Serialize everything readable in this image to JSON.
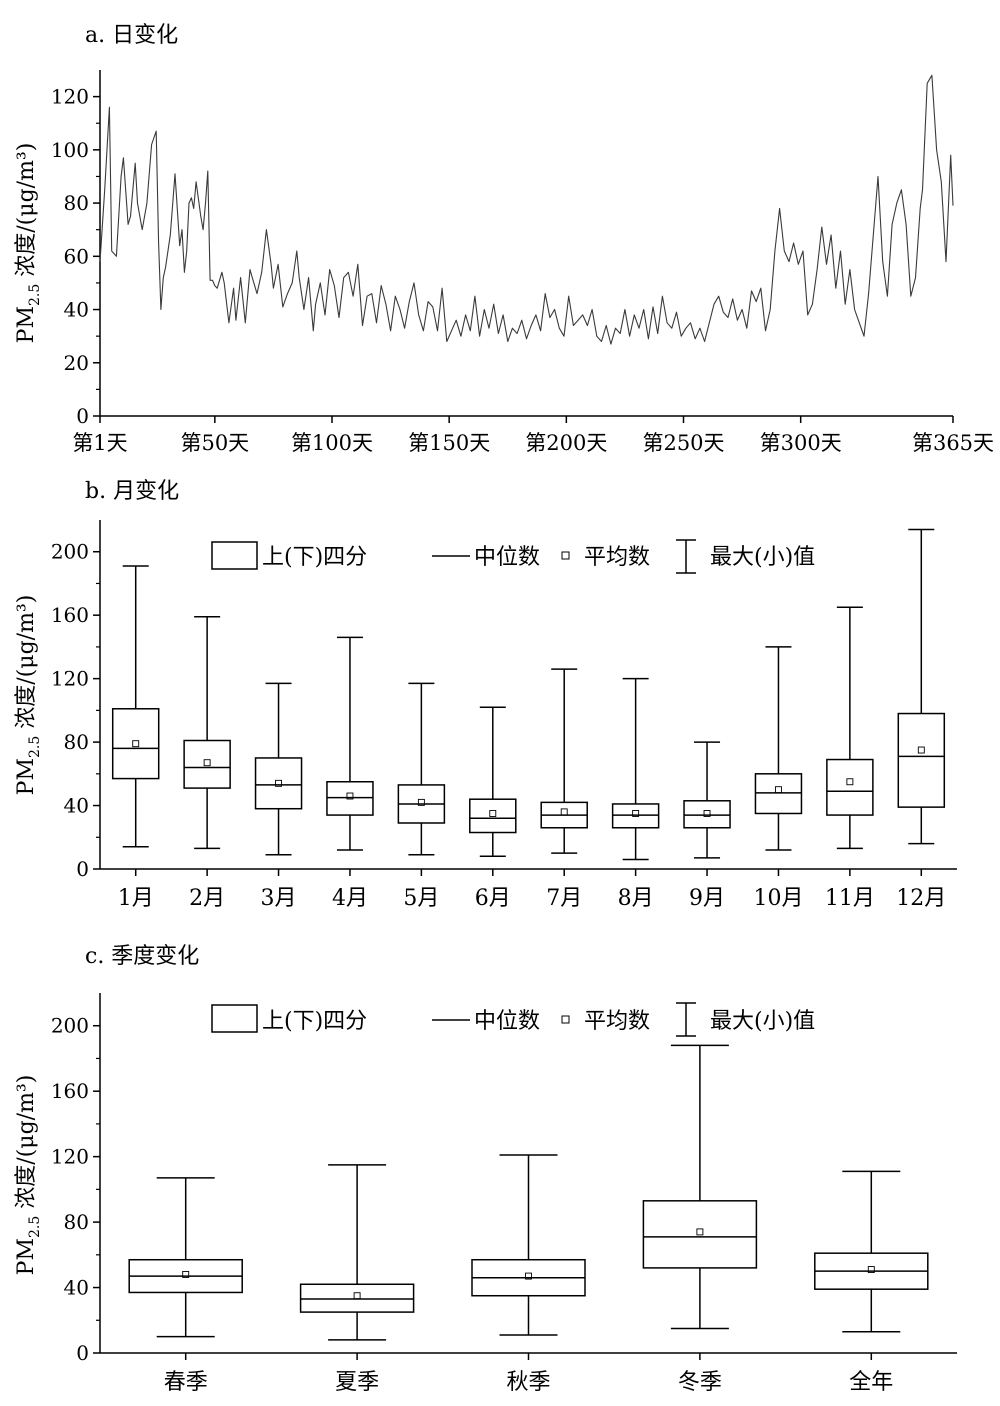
{
  "chart_data": [
    {
      "panel": "a",
      "title": "a. 日变化",
      "type": "line",
      "ylabel_main": "PM",
      "ylabel_sub": "2.5",
      "ylabel_rest": " 浓度/(μg/m³)",
      "ylim": [
        0,
        130
      ],
      "yticks": [
        0,
        20,
        40,
        60,
        80,
        100,
        120
      ],
      "xlim": [
        1,
        365
      ],
      "xticks": [
        {
          "x": 1,
          "label": "第1天"
        },
        {
          "x": 50,
          "label": "第50天"
        },
        {
          "x": 100,
          "label": "第100天"
        },
        {
          "x": 150,
          "label": "第150天"
        },
        {
          "x": 200,
          "label": "第200天"
        },
        {
          "x": 250,
          "label": "第250天"
        },
        {
          "x": 300,
          "label": "第300天"
        },
        {
          "x": 365,
          "label": "第365天"
        }
      ],
      "series": [
        {
          "x": [
            1,
            3,
            5,
            6,
            8,
            10,
            11,
            13,
            14,
            16,
            17,
            19,
            21,
            23,
            25,
            26,
            27,
            28,
            29,
            31,
            33,
            35,
            36,
            37,
            38,
            39,
            40,
            41,
            42,
            44,
            45,
            46,
            47,
            48,
            49,
            50,
            51,
            53,
            54,
            56,
            58,
            59,
            61,
            63,
            65,
            66,
            68,
            70,
            72,
            74,
            75,
            77,
            79,
            81,
            83,
            85,
            86,
            88,
            90,
            92,
            93,
            95,
            97,
            99,
            101,
            103,
            105,
            107,
            109,
            111,
            113,
            115,
            117,
            119,
            121,
            123,
            125,
            127,
            129,
            131,
            133,
            135,
            137,
            139,
            141,
            143,
            145,
            147,
            149,
            151,
            153,
            155,
            157,
            159,
            161,
            163,
            165,
            167,
            169,
            171,
            173,
            175,
            177,
            179,
            181,
            183,
            185,
            187,
            189,
            191,
            193,
            195,
            197,
            199,
            201,
            203,
            205,
            207,
            209,
            211,
            213,
            215,
            217,
            219,
            221,
            223,
            225,
            227,
            229,
            231,
            233,
            235,
            237,
            239,
            241,
            243,
            245,
            247,
            249,
            251,
            253,
            255,
            257,
            259,
            261,
            263,
            265,
            267,
            269,
            271,
            273,
            275,
            277,
            279,
            281,
            283,
            285,
            287,
            289,
            291,
            293,
            295,
            297,
            299,
            301,
            303,
            305,
            307,
            309,
            311,
            313,
            315,
            317,
            319,
            321,
            323,
            325,
            327,
            329,
            331,
            333,
            335,
            337,
            339,
            341,
            343,
            345,
            347,
            349,
            351,
            352,
            354,
            356,
            358,
            360,
            362,
            364,
            365
          ],
          "y": [
            58,
            85,
            116,
            62,
            60,
            90,
            97,
            72,
            75,
            95,
            80,
            70,
            80,
            102,
            107,
            65,
            40,
            52,
            56,
            68,
            91,
            64,
            70,
            54,
            62,
            80,
            82,
            78,
            88,
            75,
            70,
            80,
            92,
            51,
            51,
            49,
            48,
            54,
            50,
            35,
            48,
            36,
            52,
            35,
            55,
            52,
            46,
            54,
            70,
            57,
            48,
            57,
            41,
            46,
            50,
            62,
            52,
            40,
            52,
            32,
            42,
            50,
            38,
            55,
            49,
            37,
            52,
            54,
            45,
            57,
            34,
            45,
            46,
            35,
            49,
            42,
            32,
            45,
            40,
            33,
            43,
            50,
            38,
            32,
            43,
            41,
            32,
            48,
            28,
            32,
            36,
            30,
            38,
            32,
            45,
            30,
            40,
            33,
            42,
            31,
            38,
            28,
            33,
            31,
            36,
            29,
            34,
            38,
            32,
            46,
            37,
            40,
            33,
            30,
            45,
            34,
            36,
            38,
            34,
            40,
            30,
            28,
            34,
            27,
            33,
            31,
            40,
            30,
            38,
            33,
            40,
            29,
            41,
            31,
            45,
            35,
            33,
            39,
            30,
            33,
            35,
            29,
            33,
            28,
            35,
            42,
            45,
            39,
            37,
            44,
            36,
            40,
            33,
            47,
            43,
            48,
            32,
            40,
            62,
            78,
            62,
            58,
            65,
            57,
            62,
            38,
            42,
            55,
            71,
            57,
            68,
            48,
            62,
            42,
            55,
            40,
            35,
            30,
            46,
            68,
            90,
            58,
            45,
            72,
            80,
            85,
            72,
            45,
            52,
            78,
            85,
            125,
            128,
            100,
            88,
            58,
            98,
            79
          ]
        }
      ]
    },
    {
      "panel": "b",
      "title": "b. 月变化",
      "type": "boxplot",
      "ylabel_main": "PM",
      "ylabel_sub": "2.5",
      "ylabel_rest": " 浓度/(μg/m³)",
      "ylim": [
        0,
        220
      ],
      "yticks": [
        0,
        40,
        80,
        120,
        160,
        200
      ],
      "legend": [
        "上(下)四分",
        "中位数",
        "平均数",
        "最大(小)值"
      ],
      "categories": [
        "1月",
        "2月",
        "3月",
        "4月",
        "5月",
        "6月",
        "7月",
        "8月",
        "9月",
        "10月",
        "11月",
        "12月"
      ],
      "boxes": [
        {
          "min": 14,
          "q1": 57,
          "median": 76,
          "q3": 101,
          "max": 191,
          "mean": 79
        },
        {
          "min": 13,
          "q1": 51,
          "median": 64,
          "q3": 81,
          "max": 159,
          "mean": 67
        },
        {
          "min": 9,
          "q1": 38,
          "median": 53,
          "q3": 70,
          "max": 117,
          "mean": 54
        },
        {
          "min": 12,
          "q1": 34,
          "median": 45,
          "q3": 55,
          "max": 146,
          "mean": 46
        },
        {
          "min": 9,
          "q1": 29,
          "median": 41,
          "q3": 53,
          "max": 117,
          "mean": 42
        },
        {
          "min": 8,
          "q1": 23,
          "median": 32,
          "q3": 44,
          "max": 102,
          "mean": 35
        },
        {
          "min": 10,
          "q1": 26,
          "median": 34,
          "q3": 42,
          "max": 126,
          "mean": 36
        },
        {
          "min": 6,
          "q1": 26,
          "median": 34,
          "q3": 41,
          "max": 120,
          "mean": 35
        },
        {
          "min": 7,
          "q1": 26,
          "median": 34,
          "q3": 43,
          "max": 80,
          "mean": 35
        },
        {
          "min": 12,
          "q1": 35,
          "median": 48,
          "q3": 60,
          "max": 140,
          "mean": 50
        },
        {
          "min": 13,
          "q1": 34,
          "median": 49,
          "q3": 69,
          "max": 165,
          "mean": 55
        },
        {
          "min": 16,
          "q1": 39,
          "median": 71,
          "q3": 98,
          "max": 214,
          "mean": 75
        }
      ]
    },
    {
      "panel": "c",
      "title": "c. 季度变化",
      "type": "boxplot",
      "ylabel_main": "PM",
      "ylabel_sub": "2.5",
      "ylabel_rest": " 浓度/(μg/m³)",
      "ylim": [
        0,
        220
      ],
      "yticks": [
        0,
        40,
        80,
        120,
        160,
        200
      ],
      "legend": [
        "上(下)四分",
        "中位数",
        "平均数",
        "最大(小)值"
      ],
      "categories": [
        "春季",
        "夏季",
        "秋季",
        "冬季",
        "全年"
      ],
      "boxes": [
        {
          "min": 10,
          "q1": 37,
          "median": 47,
          "q3": 57,
          "max": 107,
          "mean": 48
        },
        {
          "min": 8,
          "q1": 25,
          "median": 33,
          "q3": 42,
          "max": 115,
          "mean": 35
        },
        {
          "min": 11,
          "q1": 35,
          "median": 46,
          "q3": 57,
          "max": 121,
          "mean": 47
        },
        {
          "min": 15,
          "q1": 52,
          "median": 71,
          "q3": 93,
          "max": 188,
          "mean": 74
        },
        {
          "min": 13,
          "q1": 39,
          "median": 50,
          "q3": 61,
          "max": 111,
          "mean": 51
        }
      ]
    }
  ]
}
